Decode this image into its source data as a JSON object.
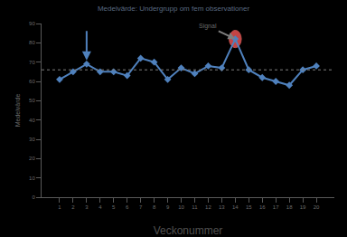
{
  "chart_data": {
    "type": "line",
    "title": "Medelvärde: Undergrupp om fem observationer",
    "x_label": "Veckonummer",
    "y_label": "Medelvärde",
    "categories": [
      "1",
      "2",
      "3",
      "4",
      "5",
      "6",
      "7",
      "8",
      "9",
      "10",
      "11",
      "12",
      "13",
      "14",
      "15",
      "16",
      "17",
      "18",
      "19",
      "20"
    ],
    "values": [
      61,
      65,
      69,
      65,
      65,
      63,
      72,
      70,
      61,
      67,
      64,
      68,
      67,
      82,
      66,
      62,
      60,
      58,
      66,
      68
    ],
    "color": "#4f81bd",
    "marker": "diamond",
    "mean": 66,
    "ylim": [
      0,
      90
    ],
    "yticks": [
      0,
      10,
      20,
      30,
      40,
      50,
      60,
      70,
      80,
      90
    ],
    "grid": false,
    "annotations": [
      {
        "text": "Signal",
        "category": "14"
      },
      {
        "category": "3"
      }
    ]
  }
}
